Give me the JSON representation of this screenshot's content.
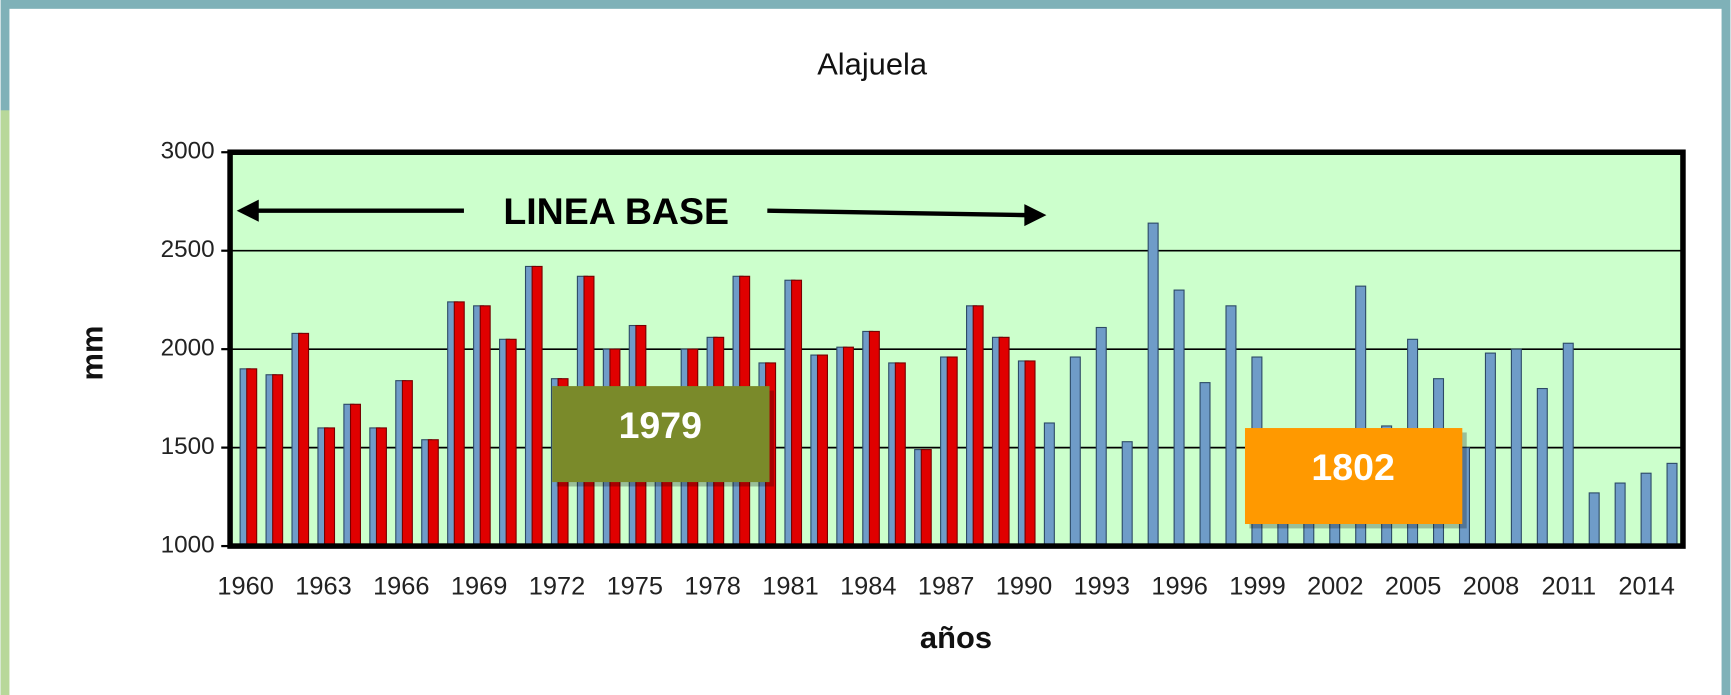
{
  "chart_data": {
    "type": "bar",
    "title": "Alajuela",
    "x_label": "años",
    "y_label": "mm",
    "categories": [
      "1960",
      null,
      null,
      "1963",
      null,
      null,
      "1966",
      null,
      null,
      "1969",
      null,
      null,
      "1972",
      null,
      null,
      "1975",
      null,
      null,
      "1978",
      null,
      null,
      "1981",
      null,
      null,
      "1984",
      null,
      null,
      "1987",
      null,
      null,
      "1990",
      null,
      null,
      "1993",
      null,
      null,
      "1996",
      null,
      null,
      "1999",
      null,
      null,
      "2002",
      null,
      null,
      "2005",
      null,
      null,
      "2008",
      null,
      null,
      "2011",
      null,
      null,
      "2014",
      null
    ],
    "series": [
      {
        "color": "#6f9cc8",
        "values": [
          1900,
          1870,
          2080,
          1600,
          1720,
          1600,
          1840,
          1540,
          2240,
          2220,
          2050,
          2420,
          1850,
          2370,
          2000,
          2120,
          1700,
          2000,
          2060,
          2370,
          1930,
          2350,
          1970,
          2010,
          2090,
          1930,
          1490,
          1960,
          2220,
          2060,
          1940,
          1625,
          1960,
          2110,
          1530,
          2640,
          2300,
          1830,
          2220,
          1960,
          1500,
          1500,
          1400,
          2320,
          1610,
          2050,
          1850,
          1500,
          1980,
          2000,
          1800,
          2030,
          1270,
          1320,
          1370,
          1420
        ]
      },
      {
        "color": "#e00000",
        "values": [
          1900,
          1870,
          2080,
          1600,
          1720,
          1600,
          1840,
          1540,
          2240,
          2220,
          2050,
          2420,
          1850,
          2370,
          2000,
          2120,
          1700,
          2000,
          2060,
          2370,
          1930,
          2350,
          1970,
          2010,
          2090,
          1930,
          1490,
          1960,
          2220,
          2060,
          1940,
          null,
          null,
          null,
          null,
          null,
          null,
          null,
          null,
          null,
          null,
          null,
          null,
          null,
          null,
          null,
          null,
          null,
          null,
          null,
          null,
          null,
          null,
          null,
          null,
          null
        ]
      }
    ],
    "ylim": [
      1000,
      3000
    ],
    "yticks": [
      1000,
      1500,
      2000,
      2500,
      3000
    ],
    "grid": true,
    "annotations": [
      {
        "text": "LINEA BASE"
      },
      {
        "text": "1979",
        "color": "#7a8a2a"
      },
      {
        "text": "1802",
        "color": "#ff9900"
      }
    ]
  }
}
